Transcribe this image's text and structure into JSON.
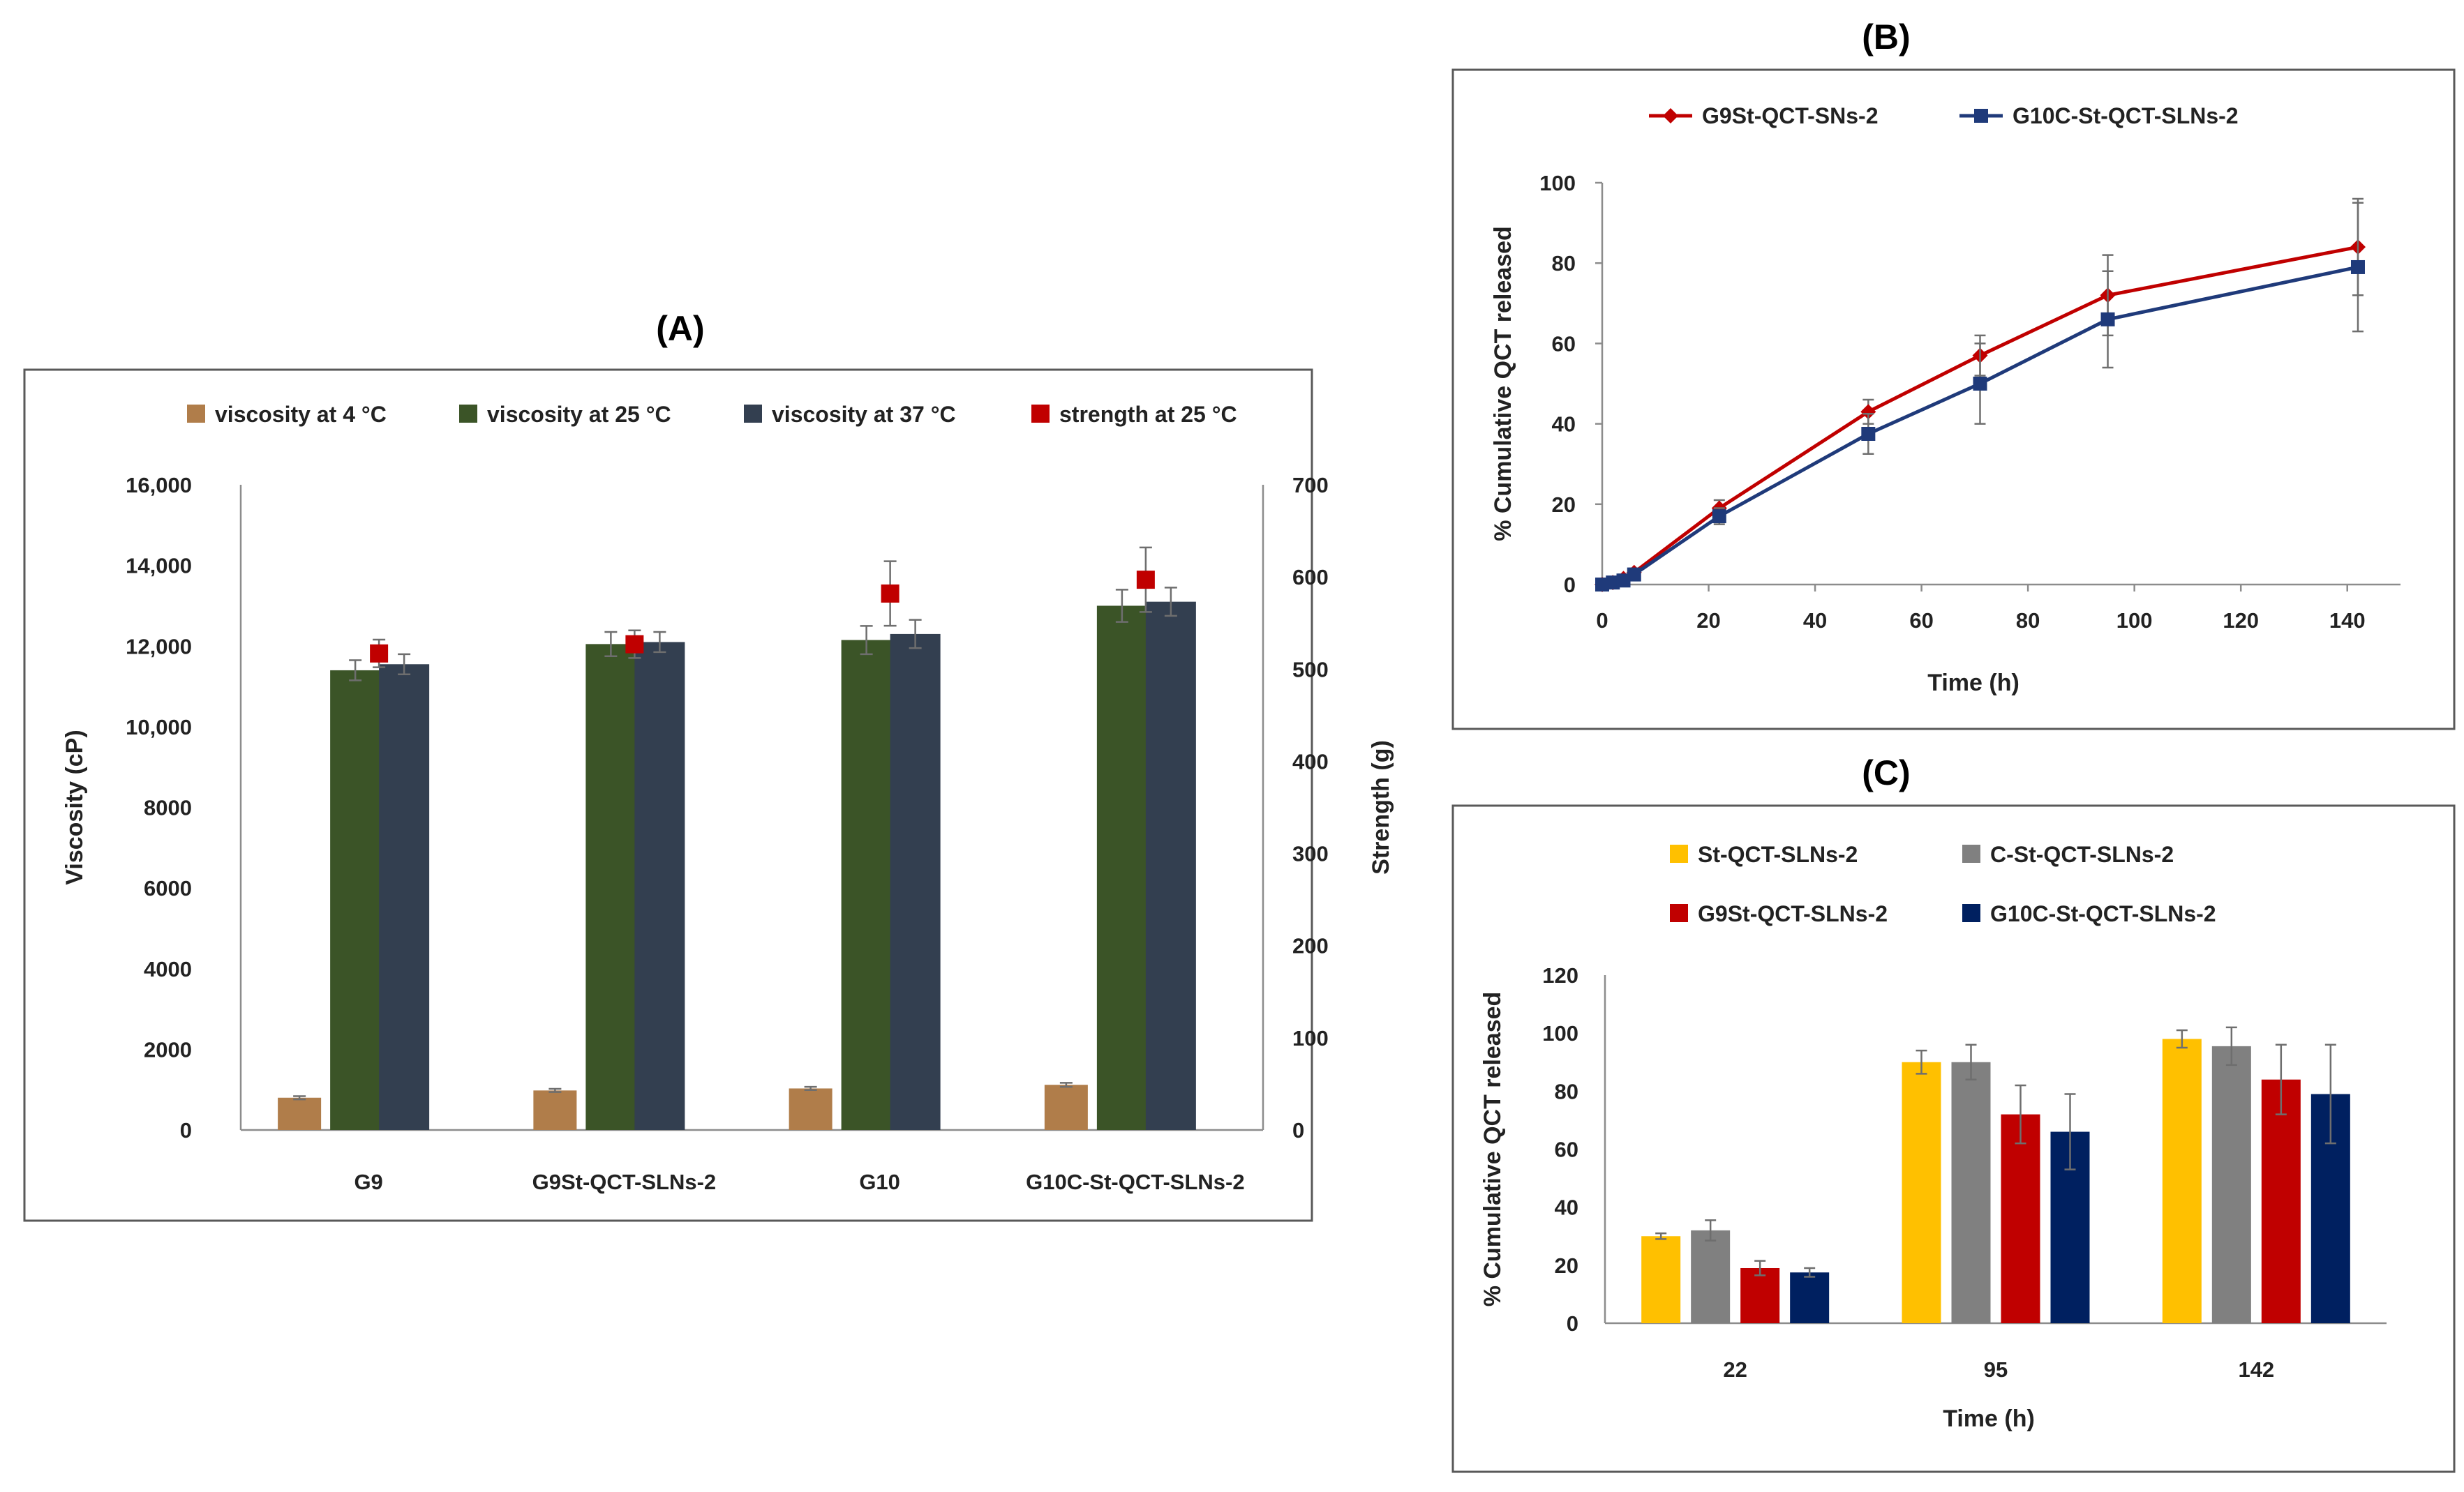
{
  "chart_data": [
    {
      "panel_label": "(A)",
      "type": "bar",
      "categories": [
        "G9",
        "G9St-QCT-SLNs-2",
        "G10",
        "G10C-St-QCT-SLNs-2"
      ],
      "series": [
        {
          "name": "viscosity at 4 °C",
          "color": "#b07d4a",
          "axis": "left",
          "values": [
            800,
            980,
            1030,
            1120
          ],
          "errors": [
            40,
            40,
            40,
            50
          ]
        },
        {
          "name": "viscosity at 25 °C",
          "color": "#3b5427",
          "axis": "left",
          "values": [
            11400,
            12050,
            12150,
            13000
          ],
          "errors": [
            250,
            300,
            350,
            400
          ]
        },
        {
          "name": "viscosity at 37 °C",
          "color": "#333f50",
          "axis": "left",
          "values": [
            11550,
            12100,
            12300,
            13100
          ],
          "errors": [
            250,
            250,
            350,
            350
          ]
        }
      ],
      "markers": {
        "name": "strength at 25 °C",
        "color": "#c00000",
        "axis": "right",
        "values": [
          517,
          527,
          582,
          597
        ],
        "errors": [
          15,
          15,
          35,
          35
        ]
      },
      "ylabel": "Viscosity (cP)",
      "y2label": "Strength (g)",
      "yticks": [
        "0",
        "2000",
        "4000",
        "6000",
        "8000",
        "10,000",
        "12,000",
        "14,000",
        "16,000"
      ],
      "y2ticks": [
        "0",
        "100",
        "200",
        "300",
        "400",
        "500",
        "600",
        "700"
      ],
      "ylim": [
        0,
        16000
      ],
      "y2lim": [
        0,
        700
      ],
      "legend_position": "top"
    },
    {
      "panel_label": "(B)",
      "type": "line",
      "series": [
        {
          "name": "G9St-QCT-SNs-2",
          "color": "#c00000",
          "marker": "diamond",
          "x": [
            0,
            2,
            4,
            6,
            22,
            50,
            71,
            95,
            142
          ],
          "y": [
            0,
            0.5,
            1.5,
            3,
            19,
            43,
            57,
            72,
            84
          ],
          "errors": [
            0.5,
            0.5,
            1,
            1,
            2,
            3,
            5,
            10,
            12
          ]
        },
        {
          "name": "G10C-St-QCT-SLNs-2",
          "color": "#1f3a7a",
          "marker": "square",
          "x": [
            0,
            2,
            4,
            6,
            22,
            50,
            71,
            95,
            142
          ],
          "y": [
            0,
            0.5,
            1,
            2.5,
            17,
            37.5,
            50,
            66,
            79
          ],
          "errors": [
            0.5,
            0.5,
            1,
            1,
            2,
            5,
            10,
            12,
            16
          ]
        }
      ],
      "xlabel": "Time (h)",
      "ylabel": "% Cumulative QCT released",
      "xticks": [
        "0",
        "20",
        "40",
        "60",
        "80",
        "100",
        "120",
        "140"
      ],
      "yticks": [
        "0",
        "20",
        "40",
        "60",
        "80",
        "100"
      ],
      "xlim": [
        0,
        150
      ],
      "ylim": [
        0,
        100
      ],
      "legend_position": "top"
    },
    {
      "panel_label": "(C)",
      "type": "bar",
      "categories": [
        "22",
        "95",
        "142"
      ],
      "series": [
        {
          "name": "St-QCT-SLNs-2",
          "color": "#ffc000",
          "values": [
            30,
            90,
            98
          ],
          "errors": [
            1,
            4,
            3
          ]
        },
        {
          "name": "C-St-QCT-SLNs-2",
          "color": "#808080",
          "values": [
            32,
            90,
            95.5
          ],
          "errors": [
            3.5,
            6,
            6.5
          ]
        },
        {
          "name": "G9St-QCT-SLNs-2",
          "color": "#c00000",
          "values": [
            19,
            72,
            84
          ],
          "errors": [
            2.5,
            10,
            12
          ]
        },
        {
          "name": "G10C-St-QCT-SLNs-2",
          "color": "#002060",
          "values": [
            17.5,
            66,
            79
          ],
          "errors": [
            1.5,
            13,
            17
          ]
        }
      ],
      "xlabel": "Time (h)",
      "ylabel": "% Cumulative QCT released",
      "yticks": [
        "0",
        "20",
        "40",
        "60",
        "80",
        "100",
        "120"
      ],
      "ylim": [
        0,
        120
      ],
      "legend_position": "top"
    }
  ]
}
